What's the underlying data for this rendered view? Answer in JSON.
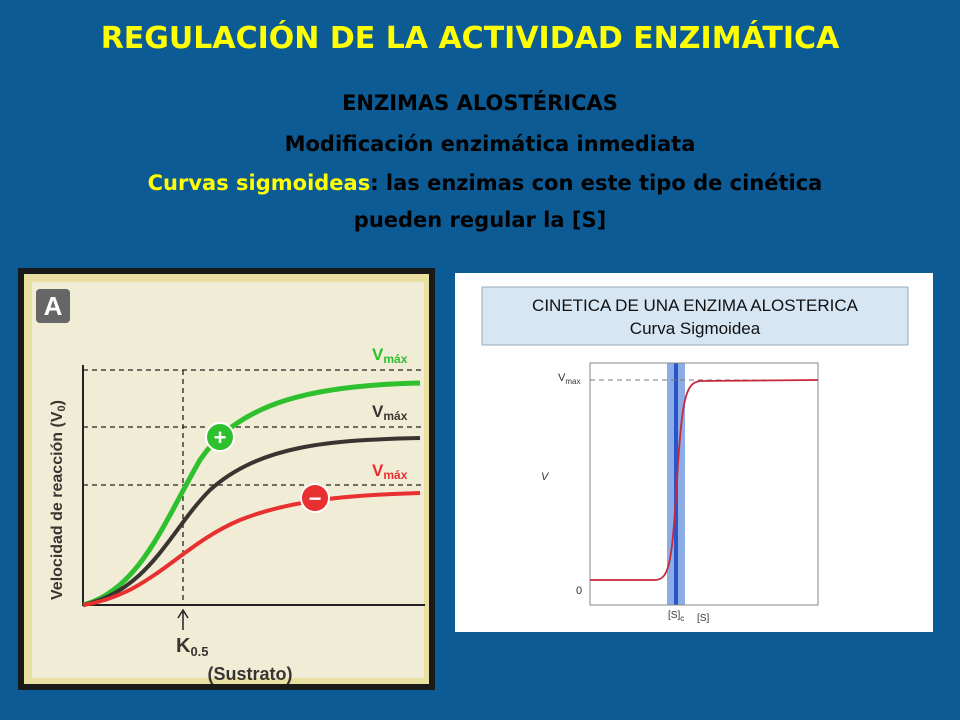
{
  "header": {
    "title": "REGULACIÓN DE LA ACTIVIDAD ENZIMÁTICA"
  },
  "subtitle": {
    "line1": "ENZIMAS ALOSTÉRICAS",
    "line2": "Modificación enzimática inmediata",
    "line3_highlight": "Curvas sigmoideas",
    "line3_rest": ": las enzimas con este tipo de cinética",
    "line4": "pueden regular la [S]"
  },
  "figure_a": {
    "panel": "A",
    "plus": "+",
    "minus": "−",
    "vmax_labels": [
      {
        "v": "V",
        "sub": "máx"
      },
      {
        "v": "V",
        "sub": "máx"
      },
      {
        "v": "V",
        "sub": "máx"
      }
    ],
    "y_label": "Velocidad de reacción (V",
    "y_label_sub": "0",
    "y_label_end": ")",
    "k_label": "K",
    "k_sub": "0.5",
    "x_label": "(Sustrato)"
  },
  "figure_b": {
    "title": "CINETICA  DE UNA  ENZIMA  ALOSTERICA",
    "subtitle": "Curva Sigmoidea",
    "vmax": "V",
    "vmax_sub": "max",
    "y_label": "V",
    "zero": "0",
    "sc": "[S]",
    "sc_sub": "c",
    "x_label": "[S]"
  }
}
